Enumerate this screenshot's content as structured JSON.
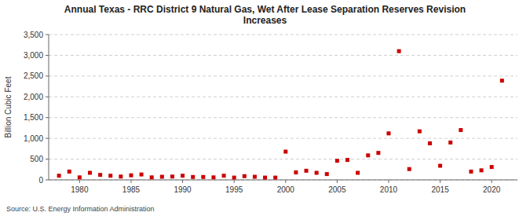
{
  "chart_data": {
    "type": "scatter",
    "title": "Annual Texas - RRC District 9 Natural Gas, Wet After Lease Separation Reserves Revision\nIncreases",
    "y_label": "Billion Cubic Feet",
    "source": "Source: U.S. Energy Information Administration",
    "color": "#cc0000",
    "marker": "square",
    "grid": true,
    "x": [
      1978,
      1979,
      1980,
      1981,
      1982,
      1983,
      1984,
      1985,
      1986,
      1987,
      1988,
      1989,
      1990,
      1991,
      1992,
      1993,
      1994,
      1995,
      1996,
      1997,
      1998,
      1999,
      2000,
      2001,
      2002,
      2003,
      2004,
      2005,
      2006,
      2007,
      2008,
      2009,
      2010,
      2011,
      2012,
      2013,
      2014,
      2015,
      2016,
      2017,
      2018,
      2019,
      2020,
      2021
    ],
    "values": [
      100,
      200,
      60,
      170,
      120,
      100,
      80,
      110,
      130,
      60,
      75,
      80,
      100,
      70,
      70,
      60,
      100,
      55,
      90,
      75,
      55,
      55,
      680,
      180,
      220,
      170,
      140,
      460,
      480,
      170,
      590,
      650,
      1120,
      3100,
      260,
      1170,
      880,
      340,
      900,
      1200,
      200,
      230,
      310,
      2390
    ],
    "xlim": [
      1977,
      2022.5
    ],
    "ylim": [
      0,
      3500
    ],
    "xticks": [
      1980,
      1985,
      1990,
      1995,
      2000,
      2005,
      2010,
      2015,
      2020
    ],
    "yticks": [
      0,
      500,
      {
        "value": 1000,
        "label": "1,000"
      },
      {
        "value": 1500,
        "label": "1,500"
      },
      {
        "value": 2000,
        "label": "2,000"
      },
      {
        "value": 2500,
        "label": "2,500"
      },
      {
        "value": 3000,
        "label": "3,000"
      },
      {
        "value": 3500,
        "label": "3,500"
      }
    ]
  }
}
